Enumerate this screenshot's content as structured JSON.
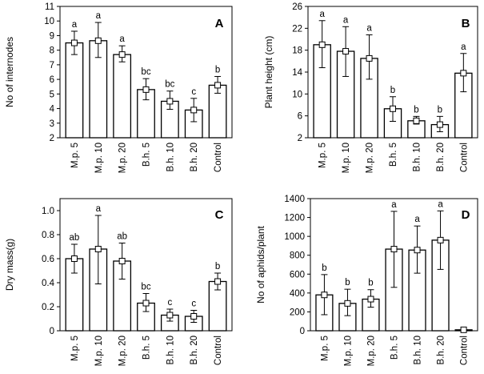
{
  "chart_data": [
    {
      "type": "bar",
      "panel": "A",
      "ylabel": "No of internodes",
      "xlabel": "",
      "ylim": [
        2,
        11
      ],
      "yticks": [
        2,
        3,
        4,
        5,
        6,
        7,
        8,
        9,
        10,
        11
      ],
      "grid": false,
      "categories": [
        "M.p. 5",
        "M.p. 10",
        "M.p. 20",
        "B.h. 5",
        "B.h. 10",
        "B.h. 20",
        "Control"
      ],
      "values": [
        8.5,
        8.65,
        7.7,
        5.3,
        4.5,
        3.9,
        5.6
      ],
      "error_low": [
        7.7,
        7.5,
        7.2,
        4.6,
        3.95,
        3.1,
        5.05
      ],
      "error_high": [
        9.3,
        9.9,
        8.3,
        6.05,
        5.2,
        4.7,
        6.2
      ],
      "labels": [
        "a",
        "a",
        "a",
        "bc",
        "bc",
        "c",
        "b"
      ]
    },
    {
      "type": "bar",
      "panel": "B",
      "ylabel": "Plant height (cm)",
      "xlabel": "",
      "ylim": [
        2,
        26
      ],
      "yticks": [
        2,
        6,
        10,
        14,
        18,
        22,
        26
      ],
      "grid": false,
      "categories": [
        "M.p. 5",
        "M.p. 10",
        "M.p. 20",
        "B.h. 5",
        "B.h. 10",
        "B.h. 20",
        "Control"
      ],
      "values": [
        19.0,
        17.8,
        16.5,
        7.3,
        5.1,
        4.4,
        13.8
      ],
      "error_low": [
        14.8,
        13.2,
        12.7,
        5.0,
        4.5,
        3.1,
        10.4
      ],
      "error_high": [
        23.4,
        22.3,
        20.8,
        9.5,
        5.9,
        5.9,
        17.4
      ],
      "labels": [
        "a",
        "a",
        "a",
        "b",
        "b",
        "b",
        "a"
      ]
    },
    {
      "type": "bar",
      "panel": "C",
      "ylabel": "Dry mass(g)",
      "xlabel": "",
      "ylim": [
        0,
        1.1
      ],
      "yticks": [
        0,
        0.2,
        0.4,
        0.6,
        0.8,
        1.0
      ],
      "ytick_labels": [
        "0",
        "0.2",
        "0.4",
        "0.6",
        "0.8",
        "1.0"
      ],
      "grid": false,
      "categories": [
        "M.p. 5",
        "M.p. 10",
        "M.p. 20",
        "B.h. 5",
        "B.h. 10",
        "B.h. 20",
        "Control"
      ],
      "values": [
        0.6,
        0.68,
        0.58,
        0.23,
        0.13,
        0.12,
        0.41
      ],
      "error_low": [
        0.48,
        0.39,
        0.43,
        0.16,
        0.08,
        0.07,
        0.34
      ],
      "error_high": [
        0.72,
        0.96,
        0.73,
        0.31,
        0.18,
        0.17,
        0.48
      ],
      "labels": [
        "ab",
        "a",
        "ab",
        "bc",
        "c",
        "c",
        "b"
      ]
    },
    {
      "type": "bar",
      "panel": "D",
      "ylabel": "No of aphids/plant",
      "xlabel": "",
      "ylim": [
        0,
        1400
      ],
      "yticks": [
        0,
        200,
        400,
        600,
        800,
        1000,
        1200,
        1400
      ],
      "grid": false,
      "categories": [
        "M.p. 5",
        "M.p. 10",
        "M.p. 20",
        "B.h. 5",
        "B.h. 10",
        "B.h. 20",
        "Control"
      ],
      "values": [
        380,
        290,
        335,
        865,
        855,
        960,
        10
      ],
      "error_low": [
        170,
        160,
        250,
        460,
        610,
        650,
        0
      ],
      "error_high": [
        595,
        440,
        435,
        1265,
        1110,
        1270,
        15
      ],
      "labels": [
        "b",
        "b",
        "b",
        "a",
        "a",
        "a",
        ""
      ]
    }
  ]
}
